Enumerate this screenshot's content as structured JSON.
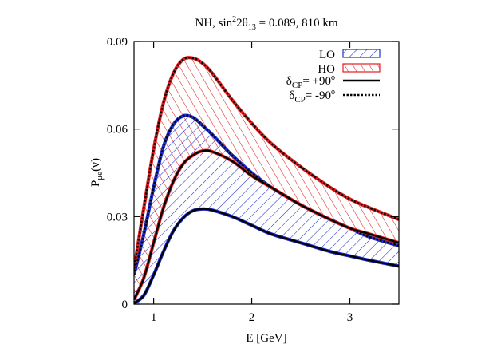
{
  "chart_data": {
    "type": "area",
    "title": "NH, sin²2θ₁₃ = 0.089, 810 km",
    "title_parts": {
      "pre": "NH, sin",
      "sup": "2",
      "mid": "2θ",
      "sub": "13",
      "post": " = 0.089, 810 km"
    },
    "xlabel": "E [GeV]",
    "ylabel_parts": {
      "main": "P",
      "sub": "μe",
      "post": "(ν)"
    },
    "xlim": [
      0.8,
      3.5
    ],
    "ylim": [
      0,
      0.09
    ],
    "xticks": [
      1,
      2,
      3
    ],
    "xtick_labels": [
      "1",
      "2",
      "3"
    ],
    "yticks": [
      0,
      0.03,
      0.06,
      0.09
    ],
    "ytick_labels": [
      "0",
      "0.03",
      "0.06",
      "0.09"
    ],
    "grid": false,
    "legend_position": "top-right",
    "legend": [
      {
        "label": "LO",
        "style": "hatched-band",
        "color": "#1f2fd0"
      },
      {
        "label": "HO",
        "style": "hatched-band",
        "color": "#e02020"
      },
      {
        "label_main": "δ",
        "label_sub": "CP",
        "label_post": "= +90",
        "label_sup": "o",
        "style": "solid",
        "color": "#000000"
      },
      {
        "label_main": "δ",
        "label_sub": "CP",
        "label_post": "= -90",
        "label_sup": "o",
        "style": "dotted",
        "color": "#000000"
      }
    ],
    "series": [
      {
        "name": "LO",
        "band": "LO",
        "delta": "-90",
        "x": [
          0.8,
          0.9,
          1.0,
          1.1,
          1.2,
          1.3,
          1.4,
          1.5,
          1.6,
          1.8,
          2.0,
          2.2,
          2.5,
          2.8,
          3.0,
          3.2,
          3.5
        ],
        "y": [
          0.01,
          0.024,
          0.04,
          0.054,
          0.0615,
          0.0645,
          0.064,
          0.0612,
          0.058,
          0.051,
          0.045,
          0.04,
          0.034,
          0.029,
          0.026,
          0.023,
          0.02
        ]
      },
      {
        "name": "LO",
        "band": "LO",
        "delta": "+90",
        "x": [
          0.8,
          0.9,
          1.0,
          1.1,
          1.2,
          1.3,
          1.4,
          1.5,
          1.6,
          1.8,
          2.0,
          2.2,
          2.5,
          2.8,
          3.0,
          3.2,
          3.5
        ],
        "y": [
          0.0003,
          0.003,
          0.01,
          0.018,
          0.025,
          0.0295,
          0.032,
          0.0326,
          0.0322,
          0.03,
          0.027,
          0.024,
          0.021,
          0.018,
          0.0165,
          0.015,
          0.013
        ]
      },
      {
        "name": "HO",
        "band": "HO",
        "delta": "-90",
        "x": [
          0.8,
          0.9,
          1.0,
          1.1,
          1.2,
          1.3,
          1.4,
          1.5,
          1.6,
          1.8,
          2.0,
          2.2,
          2.5,
          2.8,
          3.0,
          3.2,
          3.5
        ],
        "y": [
          0.012,
          0.033,
          0.053,
          0.069,
          0.079,
          0.0838,
          0.0843,
          0.0825,
          0.079,
          0.07,
          0.062,
          0.055,
          0.047,
          0.04,
          0.036,
          0.033,
          0.029
        ]
      },
      {
        "name": "HO",
        "band": "HO",
        "delta": "+90",
        "x": [
          0.8,
          0.9,
          1.0,
          1.1,
          1.2,
          1.3,
          1.4,
          1.5,
          1.6,
          1.8,
          2.0,
          2.2,
          2.5,
          2.8,
          3.0,
          3.2,
          3.5
        ],
        "y": [
          0.0015,
          0.009,
          0.021,
          0.033,
          0.042,
          0.048,
          0.051,
          0.0525,
          0.0522,
          0.049,
          0.044,
          0.04,
          0.034,
          0.029,
          0.026,
          0.024,
          0.021
        ]
      }
    ]
  }
}
